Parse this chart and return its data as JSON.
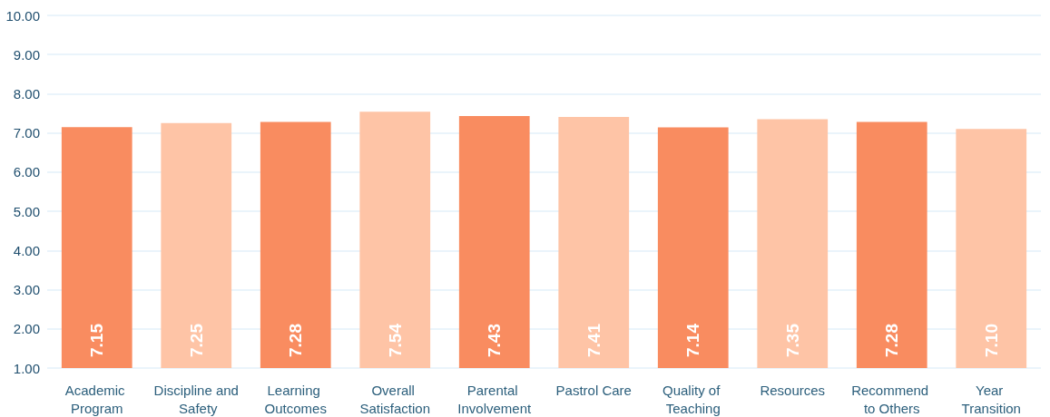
{
  "chart_data": {
    "type": "bar",
    "categories": [
      "Academic Program",
      "Discipline and Safety",
      "Learning Outcomes",
      "Overall Satisfaction",
      "Parental Involvement",
      "Pastrol Care",
      "Quality of Teaching",
      "Resources",
      "Recommend to Others",
      "Year Transition"
    ],
    "values": [
      7.15,
      7.25,
      7.28,
      7.54,
      7.43,
      7.41,
      7.14,
      7.35,
      7.28,
      7.1
    ],
    "value_labels": [
      "7.15",
      "7.25",
      "7.28",
      "7.54",
      "7.43",
      "7.41",
      "7.14",
      "7.35",
      "7.28",
      "7.10"
    ],
    "colors": [
      "#f98c60",
      "#fec4a6",
      "#f98c60",
      "#fec4a6",
      "#f98c60",
      "#fec4a6",
      "#f98c60",
      "#fec4a6",
      "#f98c60",
      "#fec4a6"
    ],
    "ylim": [
      1,
      10
    ],
    "yticks": [
      {
        "value": 1,
        "label": "1.00"
      },
      {
        "value": 2,
        "label": "2.00"
      },
      {
        "value": 3,
        "label": "3.00"
      },
      {
        "value": 4,
        "label": "4.00"
      },
      {
        "value": 5,
        "label": "5.00"
      },
      {
        "value": 6,
        "label": "6.00"
      },
      {
        "value": 7,
        "label": "7.00"
      },
      {
        "value": 8,
        "label": "8.00"
      },
      {
        "value": 9,
        "label": "9.00"
      },
      {
        "value": 10,
        "label": "10.00"
      }
    ],
    "grid": "y"
  }
}
